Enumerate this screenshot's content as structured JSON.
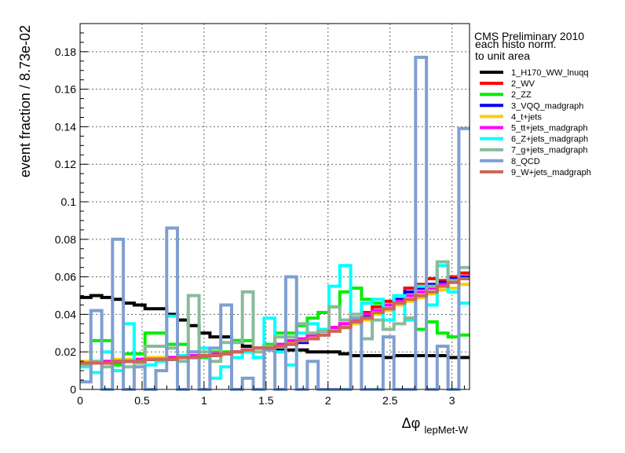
{
  "chart_data": {
    "type": "line",
    "style": "step-histogram",
    "title": "",
    "xlabel_main": "Δφ",
    "xlabel_sub": "lepMet-W",
    "ylabel": "event fraction / 8.73e-02",
    "xlim": [
      0,
      3.1416
    ],
    "ylim": [
      0,
      0.195
    ],
    "grid": true,
    "legend_placement": "right",
    "annotations": [
      "CMS Preliminary 2010",
      "each histo norm.",
      "to unit area"
    ],
    "x_ticks": [
      0,
      0.5,
      1,
      1.5,
      2,
      2.5,
      3
    ],
    "x_tick_labels": [
      "0",
      "0.5",
      "1",
      "1.5",
      "2",
      "2.5",
      "3"
    ],
    "y_ticks": [
      0,
      0.02,
      0.04,
      0.06,
      0.08,
      0.1,
      0.12,
      0.14,
      0.16,
      0.18
    ],
    "y_tick_labels": [
      "0",
      "0.02",
      "0.04",
      "0.06",
      "0.08",
      "0.1",
      "0.12",
      "0.14",
      "0.16",
      "0.18"
    ],
    "bin_width": 0.0873,
    "n_bins": 36,
    "series": [
      {
        "name": "1_H170_WW_lnuqq",
        "color": "#000000",
        "values": [
          0.049,
          0.05,
          0.049,
          0.048,
          0.046,
          0.045,
          0.043,
          0.043,
          0.04,
          0.037,
          0.034,
          0.03,
          0.028,
          0.028,
          0.026,
          0.023,
          0.022,
          0.022,
          0.021,
          0.021,
          0.021,
          0.02,
          0.02,
          0.02,
          0.019,
          0.018,
          0.018,
          0.018,
          0.017,
          0.018,
          0.018,
          0.018,
          0.018,
          0.018,
          0.017,
          0.017
        ]
      },
      {
        "name": "2_WV",
        "color": "#ff0000",
        "values": [
          0.013,
          0.014,
          0.014,
          0.014,
          0.015,
          0.015,
          0.016,
          0.016,
          0.017,
          0.017,
          0.018,
          0.018,
          0.018,
          0.019,
          0.02,
          0.021,
          0.022,
          0.023,
          0.024,
          0.025,
          0.027,
          0.029,
          0.031,
          0.033,
          0.035,
          0.038,
          0.041,
          0.044,
          0.047,
          0.05,
          0.054,
          0.056,
          0.059,
          0.058,
          0.06,
          0.062
        ]
      },
      {
        "name": "2_ZZ",
        "color": "#00ee00",
        "values": [
          0.013,
          0.026,
          0.026,
          0.013,
          0.019,
          0.019,
          0.03,
          0.03,
          0.024,
          0.024,
          0.017,
          0.017,
          0.02,
          0.02,
          0.026,
          0.026,
          0.017,
          0.024,
          0.03,
          0.03,
          0.034,
          0.038,
          0.041,
          0.044,
          0.052,
          0.054,
          0.048,
          0.046,
          0.043,
          0.046,
          0.038,
          0.032,
          0.036,
          0.03,
          0.028,
          0.029
        ]
      },
      {
        "name": "3_VQQ_madgraph",
        "color": "#0000ee",
        "values": [
          0.013,
          0.014,
          0.014,
          0.015,
          0.015,
          0.015,
          0.016,
          0.016,
          0.016,
          0.017,
          0.017,
          0.018,
          0.018,
          0.019,
          0.02,
          0.021,
          0.022,
          0.022,
          0.023,
          0.024,
          0.025,
          0.027,
          0.029,
          0.031,
          0.033,
          0.036,
          0.039,
          0.042,
          0.045,
          0.048,
          0.052,
          0.054,
          0.056,
          0.057,
          0.059,
          0.06
        ]
      },
      {
        "name": "4_t+jets",
        "color": "#ffcc00",
        "values": [
          0.015,
          0.015,
          0.015,
          0.016,
          0.016,
          0.016,
          0.017,
          0.017,
          0.017,
          0.018,
          0.018,
          0.018,
          0.019,
          0.019,
          0.02,
          0.021,
          0.022,
          0.023,
          0.024,
          0.025,
          0.026,
          0.028,
          0.029,
          0.031,
          0.033,
          0.035,
          0.037,
          0.04,
          0.042,
          0.045,
          0.047,
          0.049,
          0.051,
          0.053,
          0.054,
          0.056
        ]
      },
      {
        "name": "5_tt+jets_madgraph",
        "color": "#ff00ff",
        "values": [
          0.014,
          0.014,
          0.015,
          0.015,
          0.015,
          0.016,
          0.016,
          0.016,
          0.017,
          0.017,
          0.018,
          0.018,
          0.019,
          0.019,
          0.02,
          0.021,
          0.022,
          0.023,
          0.024,
          0.026,
          0.027,
          0.029,
          0.031,
          0.033,
          0.035,
          0.037,
          0.04,
          0.042,
          0.045,
          0.047,
          0.05,
          0.052,
          0.054,
          0.056,
          0.058,
          0.059
        ]
      },
      {
        "name": "6_Z+jets_madgraph",
        "color": "#00ffff",
        "values": [
          0.012,
          0.009,
          0.02,
          0.01,
          0.035,
          0.015,
          0.013,
          0.015,
          0.039,
          0.018,
          0.02,
          0.022,
          0.006,
          0.012,
          0.017,
          0.02,
          0.017,
          0.038,
          0.02,
          0.013,
          0.03,
          0.035,
          0.032,
          0.055,
          0.066,
          0.04,
          0.046,
          0.048,
          0.037,
          0.05,
          0.037,
          0.055,
          0.045,
          0.066,
          0.052,
          0.046
        ]
      },
      {
        "name": "7_g+jets_madgraph",
        "color": "#88bb99",
        "values": [
          0.013,
          0.015,
          0.012,
          0.015,
          0.012,
          0.014,
          0.023,
          0.023,
          0.022,
          0.015,
          0.05,
          0.02,
          0.015,
          0.025,
          0.025,
          0.052,
          0.02,
          0.023,
          0.028,
          0.028,
          0.035,
          0.03,
          0.031,
          0.044,
          0.037,
          0.04,
          0.027,
          0.037,
          0.032,
          0.035,
          0.038,
          0.05,
          0.055,
          0.068,
          0.058,
          0.065
        ]
      },
      {
        "name": "8_QCD",
        "color": "#7f9fd0",
        "values": [
          0.004,
          0.042,
          0.0,
          0.08,
          0.0,
          0.012,
          0.0,
          0.01,
          0.086,
          0.0,
          0.02,
          0.0,
          0.022,
          0.045,
          0.0,
          0.006,
          0.0,
          0.021,
          0.0,
          0.06,
          0.0,
          0.015,
          0.0,
          0.0,
          0.0,
          0.038,
          0.0,
          0.0,
          0.028,
          0.0,
          0.0,
          0.177,
          0.0,
          0.023,
          0.0,
          0.139
        ]
      },
      {
        "name": "9_W+jets_madgraph",
        "color": "#cc6655",
        "values": [
          0.014,
          0.014,
          0.014,
          0.015,
          0.015,
          0.015,
          0.016,
          0.016,
          0.016,
          0.017,
          0.017,
          0.018,
          0.018,
          0.019,
          0.02,
          0.021,
          0.022,
          0.022,
          0.023,
          0.024,
          0.026,
          0.027,
          0.029,
          0.031,
          0.033,
          0.036,
          0.038,
          0.041,
          0.043,
          0.046,
          0.048,
          0.05,
          0.052,
          0.055,
          0.057,
          0.059
        ]
      }
    ]
  }
}
